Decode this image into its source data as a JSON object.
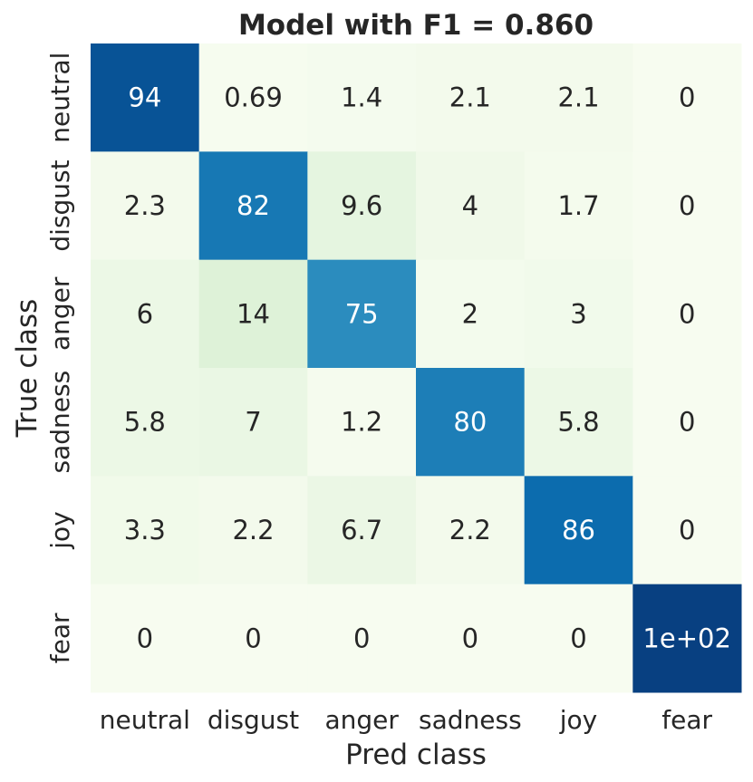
{
  "chart_data": {
    "type": "heatmap",
    "title": "Model with F1 = 0.860",
    "xlabel": "Pred class",
    "ylabel": "True class",
    "x_categories": [
      "neutral",
      "disgust",
      "anger",
      "sadness",
      "joy",
      "fear"
    ],
    "y_categories": [
      "neutral",
      "disgust",
      "anger",
      "sadness",
      "joy",
      "fear"
    ],
    "values": [
      [
        94,
        0.69,
        1.4,
        2.1,
        2.1,
        0
      ],
      [
        2.3,
        82,
        9.6,
        4,
        1.7,
        0
      ],
      [
        6,
        14,
        75,
        2,
        3,
        0
      ],
      [
        5.8,
        7,
        1.2,
        80,
        5.8,
        0
      ],
      [
        3.3,
        2.2,
        6.7,
        2.2,
        86,
        0
      ],
      [
        0,
        0,
        0,
        0,
        0,
        100
      ]
    ],
    "labels": [
      [
        "94",
        "0.69",
        "1.4",
        "2.1",
        "2.1",
        "0"
      ],
      [
        "2.3",
        "82",
        "9.6",
        "4",
        "1.7",
        "0"
      ],
      [
        "6",
        "14",
        "75",
        "2",
        "3",
        "0"
      ],
      [
        "5.8",
        "7",
        "1.2",
        "80",
        "5.8",
        "0"
      ],
      [
        "3.3",
        "2.2",
        "6.7",
        "2.2",
        "86",
        "0"
      ],
      [
        "0",
        "0",
        "0",
        "0",
        "0",
        "1e+02"
      ]
    ],
    "vmin": 0,
    "vmax": 100,
    "colormap": "GnBu",
    "colorbar": false,
    "grid": false
  }
}
